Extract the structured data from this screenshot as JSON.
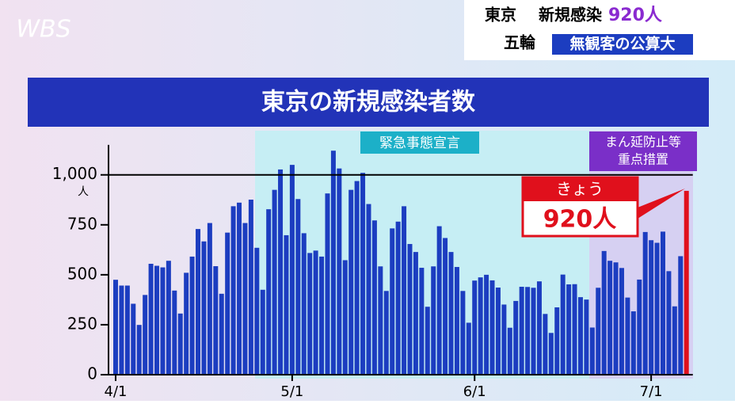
{
  "logo": "WBS",
  "header": {
    "line1_a": "東京",
    "line1_b": "新規感染",
    "line1_c": "920人",
    "line2_a": "五輪",
    "line2_b": "無観客の公算大"
  },
  "chart_data": {
    "type": "bar",
    "title": "東京の新規感染者数",
    "categories": [
      "4/1",
      null,
      null,
      null,
      null,
      null,
      null,
      null,
      null,
      null,
      null,
      null,
      null,
      null,
      null,
      null,
      null,
      null,
      null,
      null,
      null,
      null,
      null,
      null,
      null,
      null,
      null,
      null,
      null,
      null,
      "5/1",
      null,
      null,
      null,
      null,
      null,
      null,
      null,
      null,
      null,
      null,
      null,
      null,
      null,
      null,
      null,
      null,
      null,
      null,
      null,
      null,
      null,
      null,
      null,
      null,
      null,
      null,
      null,
      null,
      null,
      null,
      "6/1",
      null,
      null,
      null,
      null,
      null,
      null,
      null,
      null,
      null,
      null,
      null,
      null,
      null,
      null,
      null,
      null,
      null,
      null,
      null,
      null,
      null,
      null,
      null,
      null,
      null,
      null,
      null,
      null,
      null,
      "7/1",
      null,
      null,
      null,
      null,
      null,
      null
    ],
    "values": [
      475,
      446,
      446,
      355,
      249,
      399,
      555,
      545,
      537,
      570,
      421,
      306,
      510,
      591,
      729,
      667,
      759,
      543,
      405,
      711,
      843,
      861,
      759,
      876,
      635,
      425,
      828,
      925,
      1027,
      698,
      1050,
      879,
      708,
      609,
      621,
      591,
      907,
      1121,
      1032,
      573,
      925,
      969,
      1010,
      854,
      772,
      542,
      419,
      732,
      766,
      843,
      654,
      614,
      535,
      340,
      542,
      743,
      684,
      614,
      539,
      419,
      260,
      471,
      487,
      500,
      472,
      436,
      351,
      235,
      369,
      440,
      439,
      435,
      467,
      304,
      209,
      337,
      501,
      452,
      453,
      388,
      376,
      236,
      435,
      619,
      570,
      562,
      534,
      386,
      317,
      476,
      714,
      673,
      660,
      716,
      518,
      342,
      593,
      920
    ],
    "color": "#1c3dc0",
    "highlight_color": "#e0101c",
    "ylim": [
      0,
      1150
    ],
    "yticks": [
      0,
      250,
      500,
      750,
      {
        "value": 1000,
        "label": "1,000"
      }
    ],
    "y_unit": "人",
    "hline": 1000,
    "annotations": {
      "emergency": "緊急事態宣言",
      "prevention_1": "まん延防止等",
      "prevention_2": "重点措置",
      "callout_top": "きょう",
      "callout_value": "920人"
    }
  }
}
